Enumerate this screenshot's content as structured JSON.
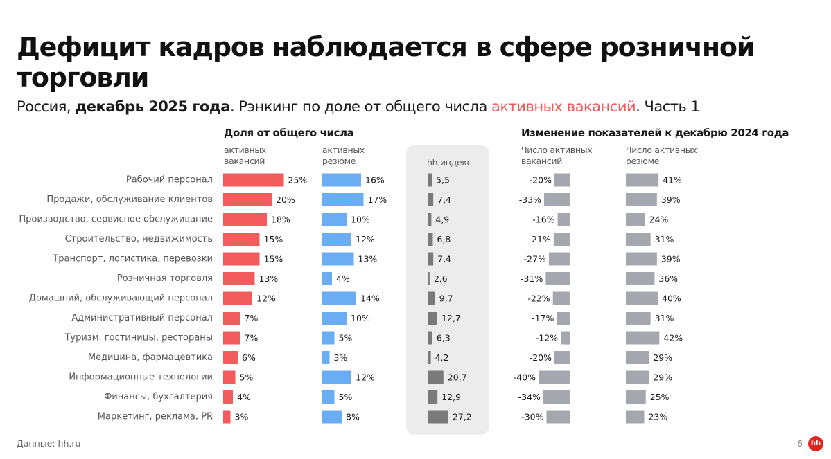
{
  "title": "Дефицит кадров наблюдается в сфере розничной торговли",
  "subtitle": {
    "part1": "Россия, ",
    "bold": "декабрь 2025 года",
    "part2": ". Рэнкинг по доле от общего числа ",
    "accent": "активных вакансий",
    "part3": ". Часть 1"
  },
  "headers": {
    "share_group": "Доля от общего числа",
    "vacancies": "активных вакансий",
    "resumes": "активных резюме",
    "hh_index": "hh.индекс",
    "change_group": "Изменение показателей к декабрю 2024 года",
    "vac_change": "Число активных вакансий",
    "res_change": "Число активных резюме"
  },
  "footer": {
    "source": "Данные: hh.ru",
    "page": "6",
    "logo": "hh"
  },
  "colors": {
    "vacancies": "#f25c5c",
    "resumes": "#6aadf2",
    "hh_index": "#7a7a7a",
    "changes": "#a4a7ad",
    "accent": "#ee5a5a",
    "logo": "#e3231d"
  },
  "chart_data": {
    "type": "bar",
    "categories": [
      "Рабочий персонал",
      "Продажи, обслуживание клиентов",
      "Производство, сервисное обслуживание",
      "Строительство, недвижимость",
      "Транспорт, логистика, перевозки",
      "Розничная торговля",
      "Домашний, обслуживающий персонал",
      "Административный персонал",
      "Туризм, гостиницы, рестораны",
      "Медицина, фармацевтика",
      "Информационные технологии",
      "Финансы, бухгалтерия",
      "Маркетинг, реклама, PR"
    ],
    "series": [
      {
        "key": "vacancies_share",
        "values": [
          25,
          20,
          18,
          15,
          15,
          13,
          12,
          7,
          7,
          6,
          5,
          4,
          3
        ],
        "labels": [
          "25%",
          "20%",
          "18%",
          "15%",
          "15%",
          "13%",
          "12%",
          "7%",
          "7%",
          "6%",
          "5%",
          "4%",
          "3%"
        ]
      },
      {
        "key": "resumes_share",
        "values": [
          16,
          17,
          10,
          12,
          13,
          4,
          14,
          10,
          5,
          3,
          12,
          5,
          8
        ],
        "labels": [
          "16%",
          "17%",
          "10%",
          "12%",
          "13%",
          "4%",
          "14%",
          "10%",
          "5%",
          "3%",
          "12%",
          "5%",
          "8%"
        ]
      },
      {
        "key": "hh_index",
        "values": [
          5.5,
          7.4,
          4.9,
          6.8,
          7.4,
          2.6,
          9.7,
          12.7,
          6.3,
          4.2,
          20.7,
          12.9,
          27.2
        ],
        "labels": [
          "5,5",
          "7,4",
          "4,9",
          "6,8",
          "7,4",
          "2,6",
          "9,7",
          "12,7",
          "6,3",
          "4,2",
          "20,7",
          "12,9",
          "27,2"
        ]
      },
      {
        "key": "vacancies_change",
        "values": [
          -20,
          -33,
          -16,
          -21,
          -27,
          -31,
          -22,
          -17,
          -12,
          -20,
          -40,
          -34,
          -30
        ],
        "labels": [
          "-20%",
          "-33%",
          "-16%",
          "-21%",
          "-27%",
          "-31%",
          "-22%",
          "-17%",
          "-12%",
          "-20%",
          "-40%",
          "-34%",
          "-30%"
        ]
      },
      {
        "key": "resumes_change",
        "values": [
          41,
          39,
          24,
          31,
          39,
          36,
          40,
          31,
          42,
          29,
          29,
          25,
          23
        ],
        "labels": [
          "41%",
          "39%",
          "24%",
          "31%",
          "39%",
          "36%",
          "40%",
          "31%",
          "42%",
          "29%",
          "29%",
          "25%",
          "23%"
        ]
      }
    ]
  }
}
